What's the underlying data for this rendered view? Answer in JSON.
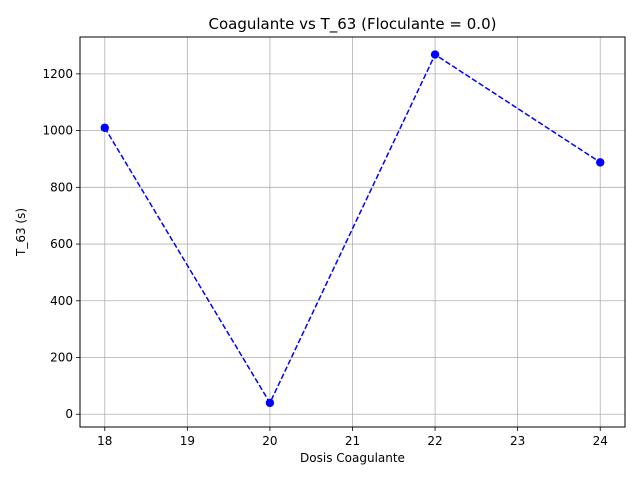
{
  "chart_data": {
    "type": "line",
    "title": "Coagulante vs T_63 (Floculante = 0.0)",
    "xlabel": "Dosis Coagulante",
    "ylabel": "T_63 (s)",
    "xlim": [
      17.7,
      24.3
    ],
    "ylim": [
      -45,
      1330
    ],
    "x_ticks": [
      18,
      19,
      20,
      21,
      22,
      23,
      24
    ],
    "y_ticks": [
      0,
      200,
      400,
      600,
      800,
      1000,
      1200
    ],
    "grid": true,
    "series": [
      {
        "x": [
          18,
          20,
          22,
          24
        ],
        "y": [
          1010,
          40,
          1268,
          888
        ],
        "color": "#0000ff",
        "line_style": "dashed",
        "marker": "circle"
      }
    ]
  }
}
